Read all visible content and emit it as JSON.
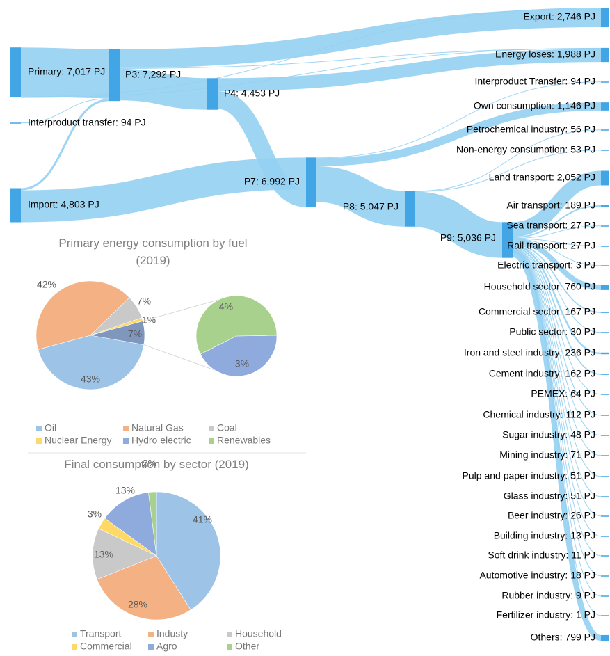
{
  "chart_data": [
    {
      "type": "sankey",
      "labels": [
        "Primary: 7,017 PJ",
        "Interproduct transfer: 94 PJ",
        "Import: 4,803 PJ",
        "P3: 7,292 PJ",
        "P4: 4,453 PJ",
        "P7: 6,992 PJ",
        "P8: 5,047 PJ",
        "P9: 5,036 PJ",
        "Export: 2,746 PJ",
        "Energy loses: 1,988 PJ",
        "Interproduct Transfer: 94 PJ",
        "Own consumption: 1,146 PJ",
        "Petrochemical industry: 56 PJ",
        "Non-energy consumption: 53 PJ",
        "Land transport: 2,052 PJ",
        "Air transport: 189 PJ",
        "Sea transport: 27 PJ",
        "Rail transport: 27 PJ",
        "Electric transport: 3 PJ",
        "Household sector: 760 PJ",
        "Commercial sector: 167 PJ",
        "Public sector: 30 PJ",
        "Iron and steel industry: 236 PJ",
        "Cement industry: 162 PJ",
        "PEMEX: 64 PJ",
        "Chemical industry: 112 PJ",
        "Sugar industry: 48 PJ",
        "Mining industry: 71 PJ",
        "Pulp and paper industry: 51 PJ",
        "Glass industry: 51 PJ",
        "Beer industry: 26 PJ",
        "Building industry: 13 PJ",
        "Soft drink industry: 11 PJ",
        "Automotive industry: 18 PJ",
        "Rubber industry: 9 PJ",
        "Fertilizer industry: 1 PJ",
        "Others: 799 PJ"
      ],
      "values": [
        7017,
        94,
        4803,
        7292,
        4453,
        6992,
        5047,
        5036,
        2746,
        1988,
        94,
        1146,
        56,
        53,
        2052,
        189,
        27,
        27,
        3,
        760,
        167,
        30,
        236,
        162,
        64,
        112,
        48,
        71,
        51,
        51,
        26,
        13,
        11,
        18,
        9,
        1,
        799
      ],
      "color": "#42a5e6",
      "link_color": "#93d0f2",
      "links": [
        {
          "source": 0,
          "target": 3,
          "value": 6900
        },
        {
          "source": 0,
          "target": 8,
          "value": 100
        },
        {
          "source": 0,
          "target": 9,
          "value": 50
        },
        {
          "source": 1,
          "target": 3,
          "value": 94
        },
        {
          "source": 2,
          "target": 3,
          "value": 300
        },
        {
          "source": 2,
          "target": 5,
          "value": 4500
        },
        {
          "source": 3,
          "target": 8,
          "value": 2646
        },
        {
          "source": 3,
          "target": 9,
          "value": 100
        },
        {
          "source": 3,
          "target": 4,
          "value": 4453
        },
        {
          "source": 4,
          "target": 9,
          "value": 1838
        },
        {
          "source": 4,
          "target": 5,
          "value": 2500
        },
        {
          "source": 5,
          "target": 10,
          "value": 94
        },
        {
          "source": 5,
          "target": 11,
          "value": 1146
        },
        {
          "source": 5,
          "target": 6,
          "value": 5047
        },
        {
          "source": 6,
          "target": 12,
          "value": 56
        },
        {
          "source": 6,
          "target": 13,
          "value": 53
        },
        {
          "source": 6,
          "target": 7,
          "value": 5036
        },
        {
          "source": 7,
          "target": 14,
          "value": 2052
        },
        {
          "source": 7,
          "target": 15,
          "value": 189
        },
        {
          "source": 7,
          "target": 16,
          "value": 27
        },
        {
          "source": 7,
          "target": 17,
          "value": 27
        },
        {
          "source": 7,
          "target": 18,
          "value": 3
        },
        {
          "source": 7,
          "target": 19,
          "value": 760
        },
        {
          "source": 7,
          "target": 20,
          "value": 167
        },
        {
          "source": 7,
          "target": 21,
          "value": 30
        },
        {
          "source": 7,
          "target": 22,
          "value": 236
        },
        {
          "source": 7,
          "target": 23,
          "value": 162
        },
        {
          "source": 7,
          "target": 24,
          "value": 64
        },
        {
          "source": 7,
          "target": 25,
          "value": 112
        },
        {
          "source": 7,
          "target": 26,
          "value": 48
        },
        {
          "source": 7,
          "target": 27,
          "value": 71
        },
        {
          "source": 7,
          "target": 28,
          "value": 51
        },
        {
          "source": 7,
          "target": 29,
          "value": 51
        },
        {
          "source": 7,
          "target": 30,
          "value": 26
        },
        {
          "source": 7,
          "target": 31,
          "value": 13
        },
        {
          "source": 7,
          "target": 32,
          "value": 11
        },
        {
          "source": 7,
          "target": 33,
          "value": 18
        },
        {
          "source": 7,
          "target": 34,
          "value": 9
        },
        {
          "source": 7,
          "target": 35,
          "value": 1
        },
        {
          "source": 7,
          "target": 36,
          "value": 799
        }
      ]
    },
    {
      "type": "pie",
      "title": "Primary energy consumption by fuel (2019)",
      "categories": [
        "Oil",
        "Natural Gas",
        "Coal",
        "Nuclear Energy",
        "Hydro electric",
        "Renewables"
      ],
      "values": [
        43,
        42,
        7,
        1,
        3,
        4
      ],
      "value_labels": [
        "43%",
        "42%",
        "7%",
        "1%",
        "3%",
        "4%"
      ],
      "colors": [
        "#9dc3e6",
        "#f4b183",
        "#c9c9c9",
        "#ffd966",
        "#8faadc",
        "#a9d18e"
      ],
      "combined_value": 7,
      "combined_label": "7%",
      "combined_color": "#7f96bd"
    },
    {
      "type": "pie",
      "title": "Final consumption by sector (2019)",
      "categories": [
        "Transport",
        "Industy",
        "Household",
        "Commercial",
        "Agro",
        "Other"
      ],
      "values": [
        41,
        28,
        13,
        3,
        13,
        2
      ],
      "value_labels": [
        "41%",
        "28%",
        "13%",
        "3%",
        "13%",
        "2%"
      ],
      "colors": [
        "#9dc3e6",
        "#f4b183",
        "#c9c9c9",
        "#ffd966",
        "#8faadc",
        "#a9d18e"
      ]
    }
  ]
}
